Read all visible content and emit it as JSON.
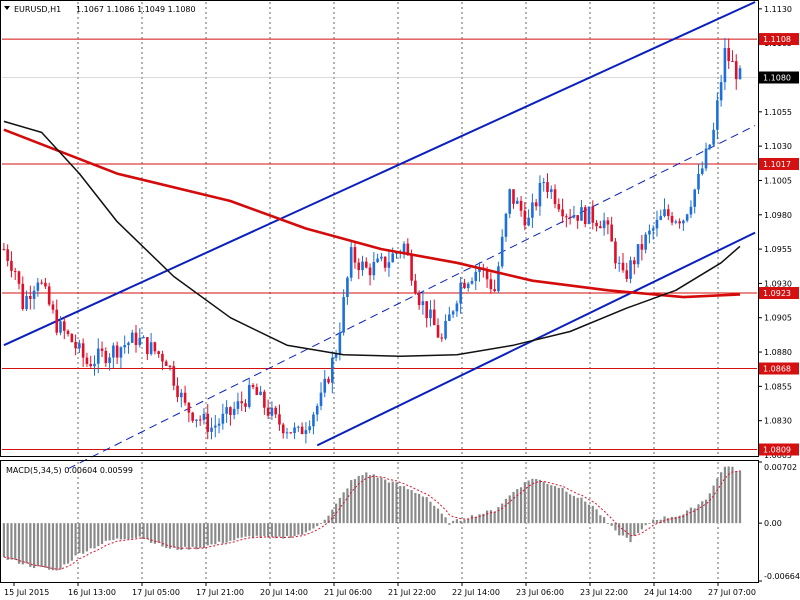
{
  "header": {
    "symbol": "EURUSD,H1",
    "ohlc": "1.1067 1.1086 1.1049 1.1080"
  },
  "macd_header": "MACD(5,34,5) 0.00604 0.00599",
  "colors": {
    "bull": "#1e6fd9",
    "bear": "#e0102a",
    "grid": "#000000",
    "hline": "#d41010",
    "channel": "#0a1fbf",
    "ma_slow": "#d40b0b",
    "ma_fast": "#111111",
    "macd_hist": "#8a8a8a",
    "macd_signal": "#e0102a"
  },
  "price_scale": {
    "ticks": [
      "1.1130",
      "1.1105",
      "1.1080",
      "1.1055",
      "1.1030",
      "1.1005",
      "1.0980",
      "1.0955",
      "1.0930",
      "1.0905",
      "1.0880",
      "1.0855",
      "1.0830",
      "1.0805"
    ]
  },
  "price_markers": [
    {
      "label": "1.1108",
      "type": "hline",
      "value": 1.1108
    },
    {
      "label": "1.1080",
      "type": "current",
      "value": 1.108
    },
    {
      "label": "1.1017",
      "type": "hline",
      "value": 1.1017
    },
    {
      "label": "1.0923",
      "type": "hline",
      "value": 1.0923
    },
    {
      "label": "1.0868",
      "type": "hline",
      "value": 1.0868
    },
    {
      "label": "1.0809",
      "type": "hline",
      "value": 1.0809
    }
  ],
  "macd_scale": {
    "ticks": [
      "0.00702",
      "0.00",
      "-0.00664"
    ]
  },
  "time_axis": [
    "15 Jul 2015",
    "16 Jul 13:00",
    "17 Jul 05:00",
    "17 Jul 21:00",
    "20 Jul 14:00",
    "21 Jul 06:00",
    "21 Jul 22:00",
    "22 Jul 14:00",
    "23 Jul 06:00",
    "23 Jul 22:00",
    "24 Jul 14:00",
    "27 Jul 07:00"
  ],
  "chart_data": {
    "type": "candlestick",
    "symbol": "EURUSD",
    "timeframe": "H1",
    "price_range": [
      1.0805,
      1.1135
    ],
    "macd_range": [
      -0.00664,
      0.00702
    ],
    "anchors": [
      {
        "bar": 0,
        "price": 1.0955
      },
      {
        "bar": 3,
        "price": 1.094
      },
      {
        "bar": 5,
        "price": 1.0915
      },
      {
        "bar": 9,
        "price": 1.0935
      },
      {
        "bar": 14,
        "price": 1.09
      },
      {
        "bar": 18,
        "price": 1.0888
      },
      {
        "bar": 22,
        "price": 1.0872
      },
      {
        "bar": 28,
        "price": 1.088
      },
      {
        "bar": 35,
        "price": 1.089
      },
      {
        "bar": 43,
        "price": 1.0875
      },
      {
        "bar": 48,
        "price": 1.084
      },
      {
        "bar": 55,
        "price": 1.0825
      },
      {
        "bar": 60,
        "price": 1.0835
      },
      {
        "bar": 66,
        "price": 1.0852
      },
      {
        "bar": 72,
        "price": 1.083
      },
      {
        "bar": 78,
        "price": 1.082
      },
      {
        "bar": 84,
        "price": 1.0845
      },
      {
        "bar": 88,
        "price": 1.0882
      },
      {
        "bar": 92,
        "price": 1.095
      },
      {
        "bar": 96,
        "price": 1.094
      },
      {
        "bar": 101,
        "price": 1.0945
      },
      {
        "bar": 106,
        "price": 1.0958
      },
      {
        "bar": 110,
        "price": 1.092
      },
      {
        "bar": 116,
        "price": 1.0888
      },
      {
        "bar": 121,
        "price": 1.093
      },
      {
        "bar": 126,
        "price": 1.0942
      },
      {
        "bar": 130,
        "price": 1.0925
      },
      {
        "bar": 134,
        "price": 1.0995
      },
      {
        "bar": 139,
        "price": 1.0975
      },
      {
        "bar": 143,
        "price": 1.1005
      },
      {
        "bar": 149,
        "price": 1.0982
      },
      {
        "bar": 154,
        "price": 1.098
      },
      {
        "bar": 159,
        "price": 1.0975
      },
      {
        "bar": 164,
        "price": 1.0933
      },
      {
        "bar": 170,
        "price": 1.0962
      },
      {
        "bar": 175,
        "price": 1.098
      },
      {
        "bar": 180,
        "price": 1.0978
      },
      {
        "bar": 184,
        "price": 1.1005
      },
      {
        "bar": 188,
        "price": 1.104
      },
      {
        "bar": 191,
        "price": 1.1098
      },
      {
        "bar": 195,
        "price": 1.108
      }
    ],
    "horizontal_levels": [
      1.1108,
      1.1017,
      1.0923,
      1.0868,
      1.0809
    ],
    "channel_lines": [
      {
        "from": {
          "bar": 0,
          "price": 1.0885
        },
        "to": {
          "bar": 199,
          "price": 1.1135
        }
      },
      {
        "from": {
          "bar": 17,
          "price": 1.0795
        },
        "to": {
          "bar": 199,
          "price": 1.1045
        },
        "dashed": true
      },
      {
        "from": {
          "bar": 83,
          "price": 1.0812
        },
        "to": {
          "bar": 199,
          "price": 1.0967
        }
      }
    ],
    "ma_slow": [
      {
        "bar": 0,
        "price": 1.1042
      },
      {
        "bar": 30,
        "price": 1.101
      },
      {
        "bar": 60,
        "price": 1.099
      },
      {
        "bar": 80,
        "price": 1.097
      },
      {
        "bar": 100,
        "price": 1.0955
      },
      {
        "bar": 120,
        "price": 1.0945
      },
      {
        "bar": 140,
        "price": 1.0932
      },
      {
        "bar": 160,
        "price": 1.0925
      },
      {
        "bar": 180,
        "price": 1.092
      },
      {
        "bar": 195,
        "price": 1.0922
      }
    ],
    "ma_fast": [
      {
        "bar": 0,
        "price": 1.1048
      },
      {
        "bar": 10,
        "price": 1.104
      },
      {
        "bar": 20,
        "price": 1.101
      },
      {
        "bar": 30,
        "price": 1.0975
      },
      {
        "bar": 45,
        "price": 1.0935
      },
      {
        "bar": 60,
        "price": 1.0905
      },
      {
        "bar": 75,
        "price": 1.0885
      },
      {
        "bar": 90,
        "price": 1.0878
      },
      {
        "bar": 105,
        "price": 1.0877
      },
      {
        "bar": 120,
        "price": 1.0878
      },
      {
        "bar": 135,
        "price": 1.0885
      },
      {
        "bar": 150,
        "price": 1.0895
      },
      {
        "bar": 165,
        "price": 1.0912
      },
      {
        "bar": 178,
        "price": 1.0925
      },
      {
        "bar": 190,
        "price": 1.0945
      },
      {
        "bar": 195,
        "price": 1.0957
      }
    ],
    "macd_anchors": [
      {
        "bar": 0,
        "value": -0.004
      },
      {
        "bar": 8,
        "value": -0.005
      },
      {
        "bar": 14,
        "value": -0.0055
      },
      {
        "bar": 20,
        "value": -0.0035
      },
      {
        "bar": 28,
        "value": -0.002
      },
      {
        "bar": 36,
        "value": -0.0015
      },
      {
        "bar": 44,
        "value": -0.003
      },
      {
        "bar": 52,
        "value": -0.0028
      },
      {
        "bar": 58,
        "value": -0.0022
      },
      {
        "bar": 66,
        "value": -0.0015
      },
      {
        "bar": 72,
        "value": -0.0018
      },
      {
        "bar": 80,
        "value": -0.0012
      },
      {
        "bar": 86,
        "value": 0.0008
      },
      {
        "bar": 92,
        "value": 0.0048
      },
      {
        "bar": 96,
        "value": 0.0058
      },
      {
        "bar": 104,
        "value": 0.0045
      },
      {
        "bar": 112,
        "value": 0.003
      },
      {
        "bar": 118,
        "value": 0.0
      },
      {
        "bar": 124,
        "value": 0.0008
      },
      {
        "bar": 130,
        "value": 0.0015
      },
      {
        "bar": 136,
        "value": 0.004
      },
      {
        "bar": 140,
        "value": 0.0052
      },
      {
        "bar": 148,
        "value": 0.004
      },
      {
        "bar": 156,
        "value": 0.002
      },
      {
        "bar": 162,
        "value": -0.001
      },
      {
        "bar": 166,
        "value": -0.002
      },
      {
        "bar": 172,
        "value": 0.0004
      },
      {
        "bar": 180,
        "value": 0.001
      },
      {
        "bar": 186,
        "value": 0.0028
      },
      {
        "bar": 191,
        "value": 0.0066
      },
      {
        "bar": 195,
        "value": 0.006
      }
    ]
  }
}
